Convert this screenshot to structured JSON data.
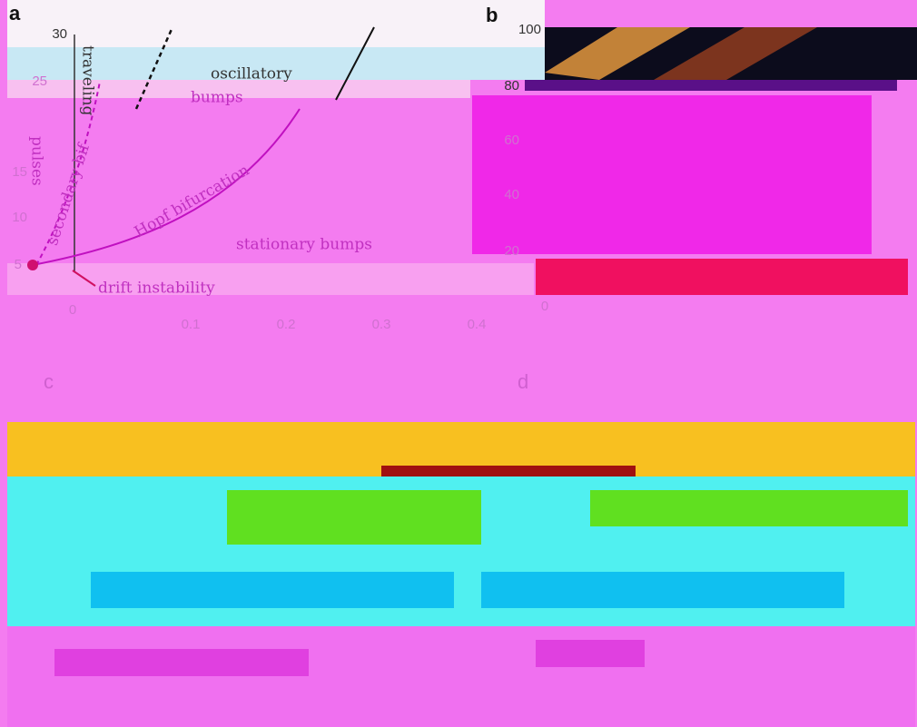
{
  "panels": [
    {
      "label": "a",
      "y_ticks": [
        "30",
        "25",
        "15",
        "10",
        "5"
      ],
      "x_ticks": [
        "0",
        "0.1",
        "0.2",
        "0.3",
        "0.4"
      ],
      "annotations": [
        "traveling",
        "oscillatory",
        "bumps",
        "stationary bumps",
        "Hopf bifurcation",
        "secondary bif",
        "pulses",
        "drift instability"
      ]
    },
    {
      "label": "b",
      "y_ticks": [
        "100",
        "80",
        "60",
        "40",
        "20",
        "0"
      ]
    },
    {
      "label": "c"
    },
    {
      "label": "d"
    }
  ]
}
